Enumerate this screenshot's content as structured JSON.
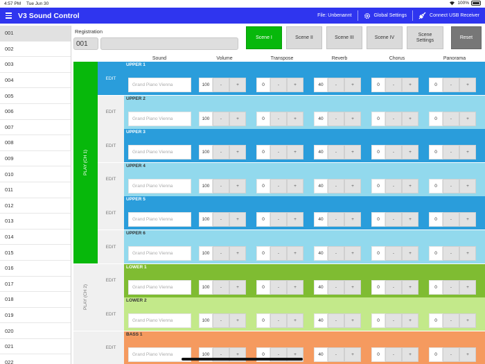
{
  "status": {
    "time": "4:57 PM",
    "date": "Tue Jun 30",
    "battery": "100%"
  },
  "app": {
    "title": "V3 Sound Control",
    "file_label": "File: Unbenannt",
    "global_settings": "Global Settings",
    "connect_usb": "Connect USB Receiver",
    "accent_color": "#2f35ef"
  },
  "sidebar": {
    "selected": "001",
    "items": [
      "001",
      "002",
      "003",
      "004",
      "005",
      "006",
      "007",
      "008",
      "009",
      "010",
      "011",
      "012",
      "013",
      "014",
      "015",
      "016",
      "017",
      "018",
      "019",
      "020",
      "021",
      "022"
    ]
  },
  "registration": {
    "label": "Registration",
    "number": "001",
    "name": ""
  },
  "scene_buttons": [
    {
      "label": "Scene I",
      "active": true
    },
    {
      "label": "Scene II",
      "active": false
    },
    {
      "label": "Scene III",
      "active": false
    },
    {
      "label": "Scene IV",
      "active": false
    },
    {
      "label": "Scene Settings",
      "active": false
    },
    {
      "label": "Reset",
      "active": false
    }
  ],
  "columns": [
    "Sound",
    "Volume",
    "Transpose",
    "Reverb",
    "Chorus",
    "Panorama"
  ],
  "edit_label": "EDIT",
  "groups": [
    {
      "label": "PLAY (CH 1)",
      "active": true,
      "rows": 6
    },
    {
      "label": "PLAY (CH 2)",
      "active": false,
      "rows": 2
    },
    {
      "label": "",
      "active": false,
      "rows": 1
    }
  ],
  "parts": [
    {
      "name": "UPPER 1",
      "sound": "Grand Piano Vienna",
      "volume": "100",
      "transpose": "0",
      "reverb": "40",
      "chorus": "0",
      "panorama": "0",
      "selected": true,
      "color": "#2a9ddb"
    },
    {
      "name": "UPPER 2",
      "sound": "Grand Piano Vienna",
      "volume": "100",
      "transpose": "0",
      "reverb": "40",
      "chorus": "0",
      "panorama": "0",
      "selected": false,
      "color": "#92d9ed"
    },
    {
      "name": "UPPER 3",
      "sound": "Grand Piano Vienna",
      "volume": "100",
      "transpose": "0",
      "reverb": "40",
      "chorus": "0",
      "panorama": "0",
      "selected": false,
      "color": "#2a9ddb"
    },
    {
      "name": "UPPER 4",
      "sound": "Grand Piano Vienna",
      "volume": "100",
      "transpose": "0",
      "reverb": "40",
      "chorus": "0",
      "panorama": "0",
      "selected": false,
      "color": "#92d9ed"
    },
    {
      "name": "UPPER 5",
      "sound": "Grand Piano Vienna",
      "volume": "100",
      "transpose": "0",
      "reverb": "40",
      "chorus": "0",
      "panorama": "0",
      "selected": false,
      "color": "#2a9ddb"
    },
    {
      "name": "UPPER 6",
      "sound": "Grand Piano Vienna",
      "volume": "100",
      "transpose": "0",
      "reverb": "40",
      "chorus": "0",
      "panorama": "0",
      "selected": false,
      "color": "#92d9ed"
    },
    {
      "name": "LOWER 1",
      "sound": "Grand Piano Vienna",
      "volume": "100",
      "transpose": "0",
      "reverb": "40",
      "chorus": "0",
      "panorama": "0",
      "selected": false,
      "color": "#7fbc32"
    },
    {
      "name": "LOWER 2",
      "sound": "Grand Piano Vienna",
      "volume": "100",
      "transpose": "0",
      "reverb": "40",
      "chorus": "0",
      "panorama": "0",
      "selected": false,
      "color": "#c3e98a"
    },
    {
      "name": "BASS 1",
      "sound": "Grand Piano Vienna",
      "volume": "100",
      "transpose": "0",
      "reverb": "40",
      "chorus": "0",
      "panorama": "0",
      "selected": false,
      "color": "#f59a5f"
    }
  ]
}
